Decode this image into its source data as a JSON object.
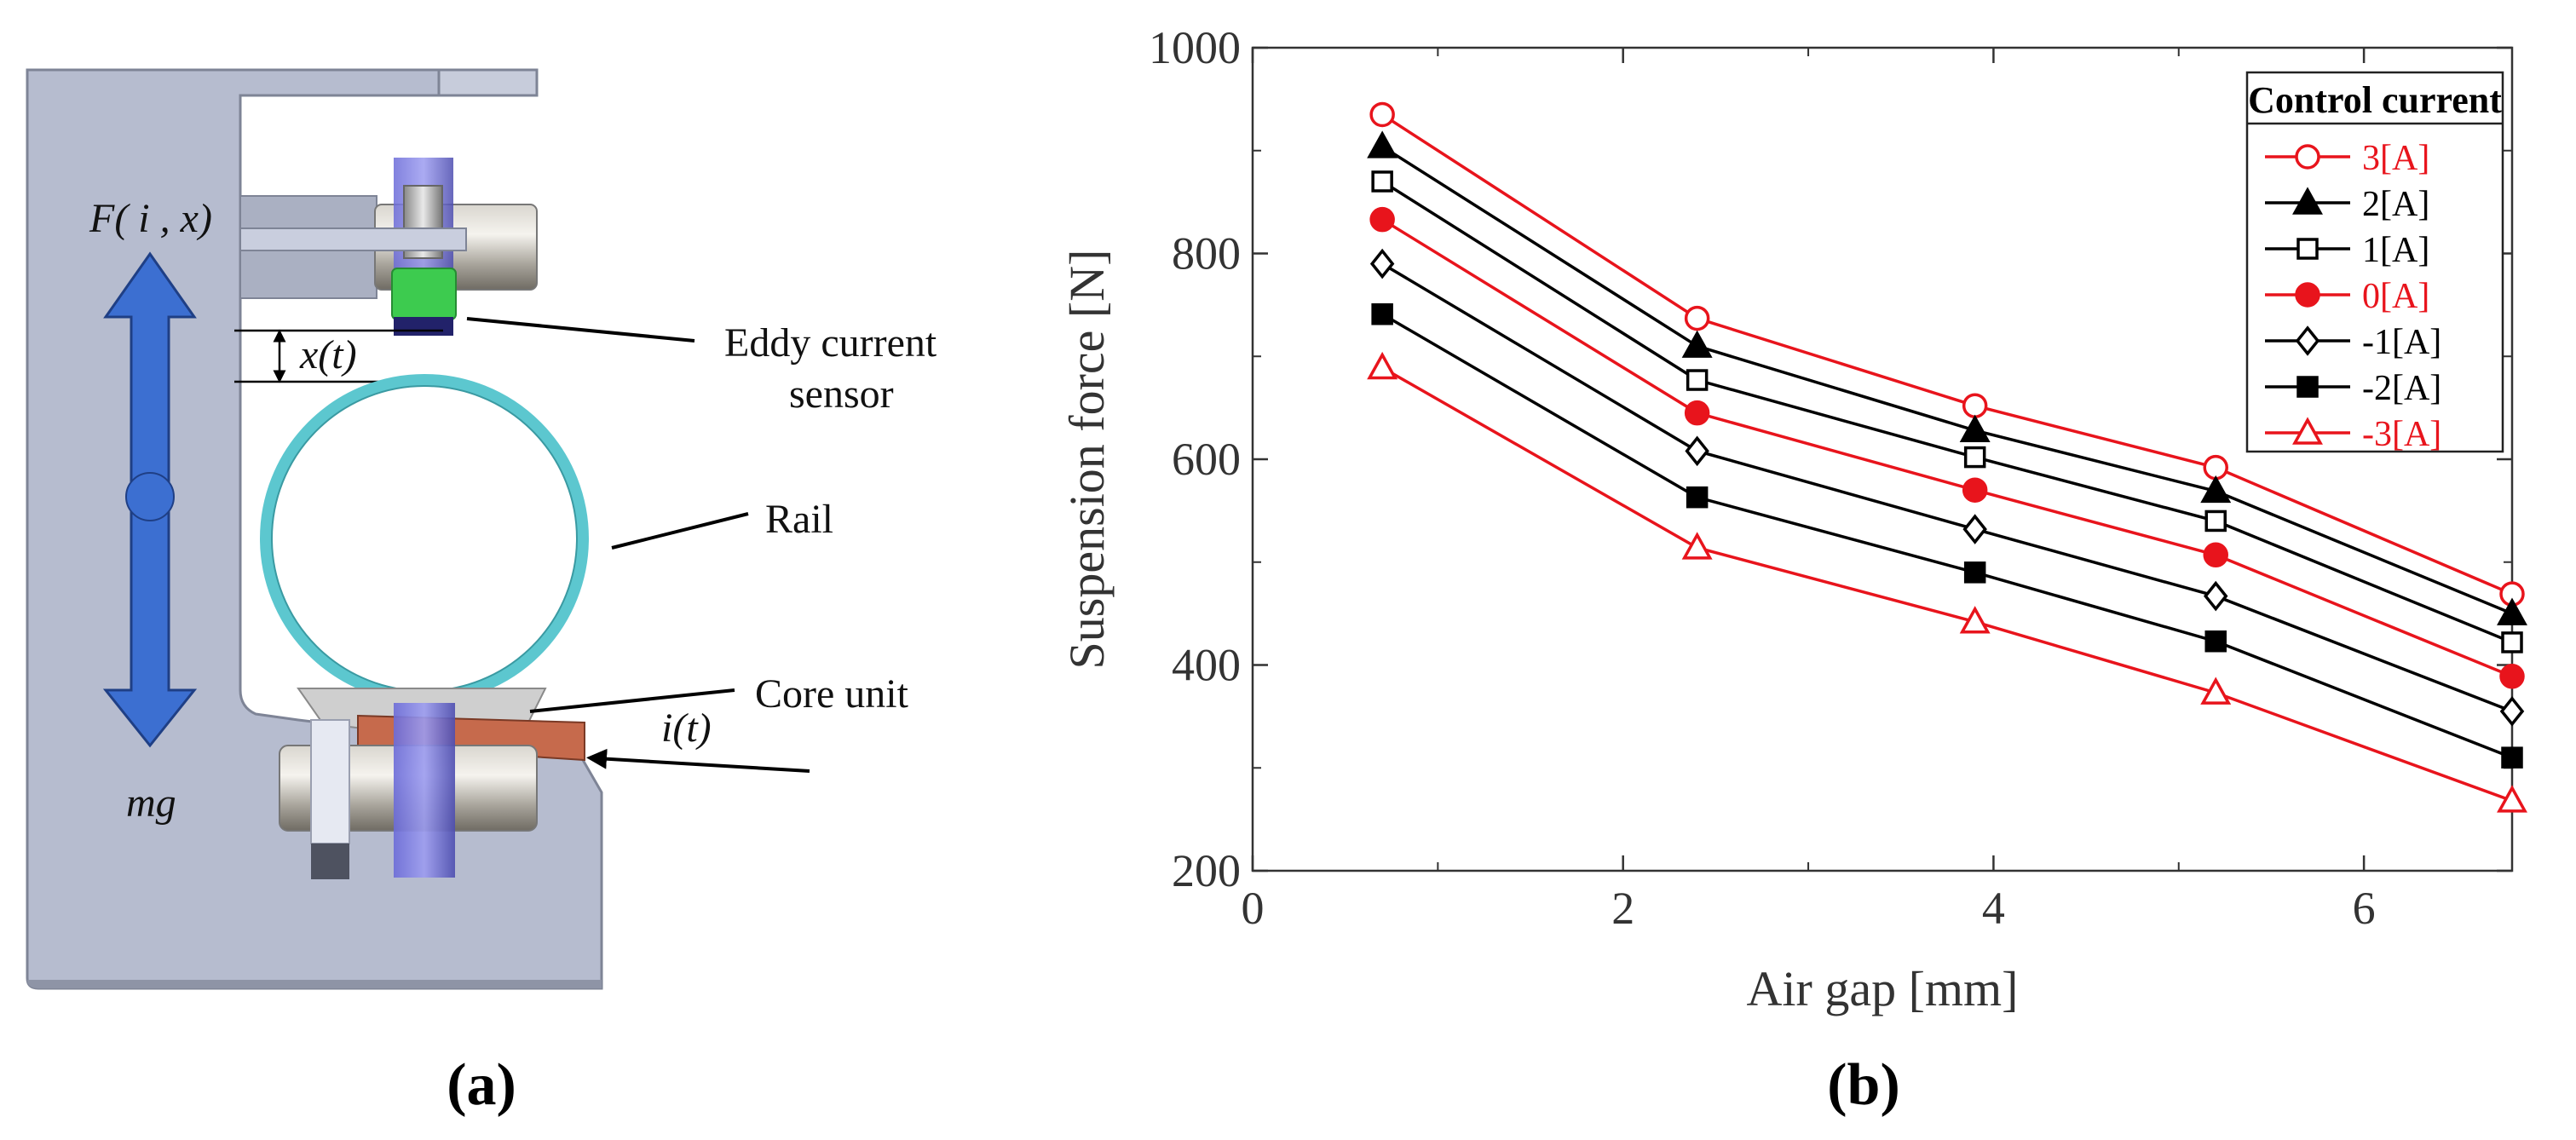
{
  "panels": {
    "a": "(a)",
    "b": "(b)"
  },
  "diagram": {
    "force_label": "F( i , x)",
    "weight_label": "mg",
    "gap_label": "x(t)",
    "current_label": "i(t)",
    "sensor_label_line1": "Eddy current",
    "sensor_label_line2": "sensor",
    "rail_label": "Rail",
    "core_label": "Core unit"
  },
  "colors": {
    "red": "#e8141c",
    "black": "#000000",
    "axis": "#333333"
  },
  "chart_data": {
    "type": "line",
    "title": "",
    "xlabel": "Air gap [mm]",
    "ylabel": "Suspension force [N]",
    "xlim": [
      0,
      6.8
    ],
    "ylim": [
      200,
      1000
    ],
    "xticks": [
      0,
      2,
      4,
      6
    ],
    "yticks": [
      200,
      400,
      600,
      800,
      1000
    ],
    "x": [
      0.7,
      2.4,
      3.9,
      5.2,
      6.8
    ],
    "legend_title": "Control current",
    "legend_position": "top-right",
    "series": [
      {
        "name": "3[A]",
        "color": "#e8141c",
        "marker": "circle-open",
        "values": [
          935,
          737,
          652,
          592,
          469
        ]
      },
      {
        "name": "2[A]",
        "color": "#000000",
        "marker": "triangle-filled",
        "values": [
          904,
          710,
          628,
          569,
          450
        ]
      },
      {
        "name": "1[A]",
        "color": "#000000",
        "marker": "square-open",
        "values": [
          870,
          677,
          602,
          540,
          422
        ]
      },
      {
        "name": "0[A]",
        "color": "#e8141c",
        "marker": "circle-filled",
        "values": [
          833,
          645,
          570,
          507,
          389
        ]
      },
      {
        "name": "-1[A]",
        "color": "#000000",
        "marker": "diamond-open",
        "values": [
          790,
          608,
          532,
          467,
          355
        ]
      },
      {
        "name": "-2[A]",
        "color": "#000000",
        "marker": "square-filled",
        "values": [
          741,
          563,
          490,
          423,
          310
        ]
      },
      {
        "name": "-3[A]",
        "color": "#e8141c",
        "marker": "triangle-open",
        "values": [
          689,
          514,
          442,
          373,
          268
        ]
      }
    ]
  }
}
